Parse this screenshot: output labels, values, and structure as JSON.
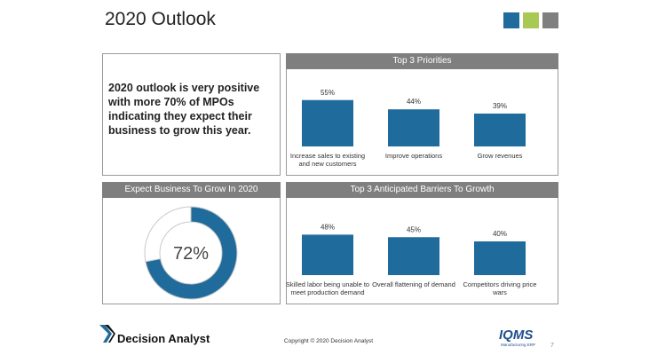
{
  "header": {
    "title": "2020 Outlook"
  },
  "summary": "2020 outlook is very positive with more 70% of MPOs indicating they expect their business to grow this year.",
  "chart_data": [
    {
      "type": "bar",
      "title": "Top 3 Priorities",
      "categories": [
        "Increase sales to existing and new customers",
        "Improve operations",
        "Grow revenues"
      ],
      "values": [
        55,
        44,
        39
      ],
      "value_labels": [
        "55%",
        "44%",
        "39%"
      ],
      "color": "#1f6c9c"
    },
    {
      "type": "pie",
      "donut": true,
      "title": "Expect Business To Grow In 2020",
      "values": [
        72,
        28
      ],
      "value_labels": [
        "72%",
        null
      ],
      "colors": [
        "#1f6c9c",
        "#ffffff"
      ]
    },
    {
      "type": "bar",
      "title": "Top 3 Anticipated Barriers To Growth",
      "categories": [
        "Skilled labor being unable to meet production demand",
        "Overall flattening of demand",
        "Competitors driving price wars"
      ],
      "values": [
        48,
        45,
        40
      ],
      "value_labels": [
        "48%",
        "45%",
        "40%"
      ],
      "color": "#1f6c9c"
    }
  ],
  "footer": {
    "brand": "Decision Analyst",
    "copyright": "Copyright © 2020 Decision Analyst",
    "logo": "IQMS",
    "logo_tagline": "Manufacturing ERP",
    "page": 7
  }
}
